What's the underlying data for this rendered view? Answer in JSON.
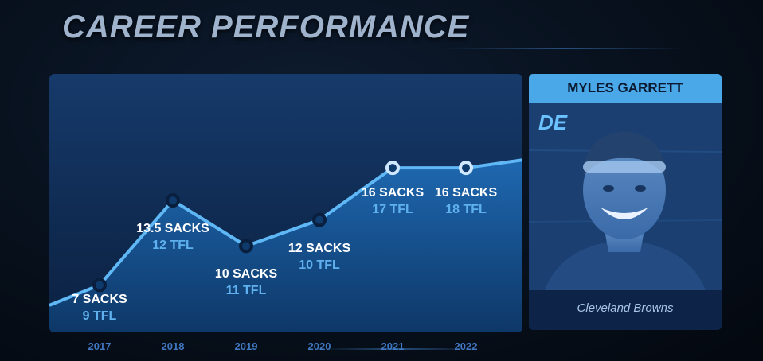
{
  "header": {
    "title": "CAREER PERFORMANCE"
  },
  "player": {
    "name": "MYLES GARRETT",
    "position": "DE",
    "team": "Cleveland Browns"
  },
  "colors": {
    "line": "#5fb8f5",
    "area_top": "#1f5fa3",
    "area_bottom": "#0e3a6c",
    "accent": "#4aa8e8",
    "sacks_text": "#ffffff",
    "tfl_text": "#5fb0ee"
  },
  "chart_data": {
    "type": "line",
    "title": "CAREER PERFORMANCE",
    "categories": [
      "2017",
      "2018",
      "2019",
      "2020",
      "2021",
      "2022"
    ],
    "series": [
      {
        "values": [
          7,
          13.5,
          10,
          12,
          16,
          16
        ]
      }
    ],
    "labels": [
      {
        "year": "2017",
        "sacks": "7 SACKS",
        "tfl": "9 TFL"
      },
      {
        "year": "2018",
        "sacks": "13.5 SACKS",
        "tfl": "12 TFL"
      },
      {
        "year": "2019",
        "sacks": "10 SACKS",
        "tfl": "11 TFL"
      },
      {
        "year": "2020",
        "sacks": "12 SACKS",
        "tfl": "10 TFL"
      },
      {
        "year": "2021",
        "sacks": "16 SACKS",
        "tfl": "17 TFL"
      },
      {
        "year": "2022",
        "sacks": "16 SACKS",
        "tfl": "18 TFL"
      }
    ],
    "grid": false
  }
}
